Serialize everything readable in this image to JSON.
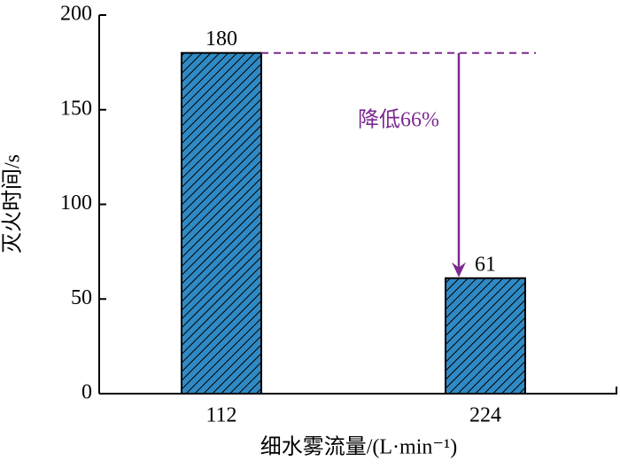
{
  "chart_data": {
    "type": "bar",
    "y_label": "灭火时间/s",
    "x_label": "细水雾流量/(L·min⁻¹)",
    "categories": [
      "112",
      "224"
    ],
    "values": [
      180,
      61
    ],
    "color": "#2f8ac4",
    "hatch": true,
    "annotation": "降低66%",
    "annotation_color": "#7b2a90",
    "ylim": [
      0,
      200
    ],
    "yticks": [
      0,
      50,
      100,
      150,
      200
    ]
  }
}
